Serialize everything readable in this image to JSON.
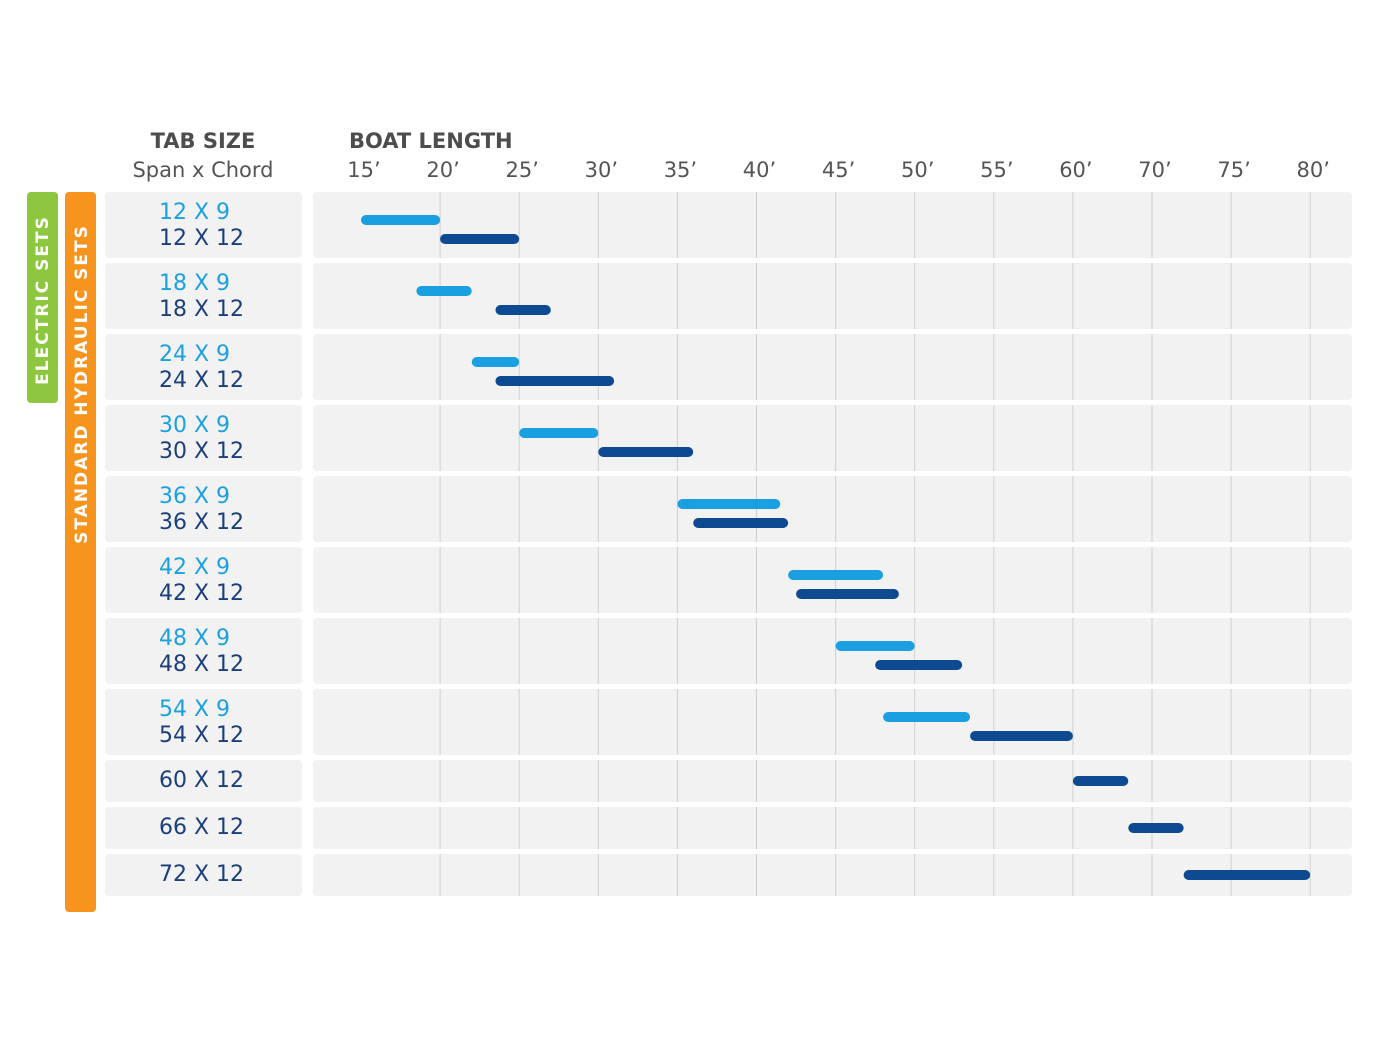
{
  "chart_data": {
    "type": "range_bar",
    "label_header": "TAB SIZE",
    "label_subheader": "Span x Chord",
    "x_label": "BOAT LENGTH",
    "groups": [
      "ELECTRIC SETS",
      "STANDARD HYDRAULIC SETS"
    ],
    "xticks": [
      {
        "value": 15,
        "label": "15’"
      },
      {
        "value": 20,
        "label": "20’"
      },
      {
        "value": 25,
        "label": "25’"
      },
      {
        "value": 30,
        "label": "30’"
      },
      {
        "value": 35,
        "label": "35’"
      },
      {
        "value": 40,
        "label": "40’"
      },
      {
        "value": 45,
        "label": "45’"
      },
      {
        "value": 50,
        "label": "50’"
      },
      {
        "value": 55,
        "label": "55’"
      },
      {
        "value": 60,
        "label": "60’"
      },
      {
        "value": 70,
        "label": "70’"
      },
      {
        "value": 75,
        "label": "75’"
      },
      {
        "value": 80,
        "label": "80’"
      }
    ],
    "rows": [
      {
        "bars": [
          {
            "label": "12 X 9",
            "color": "#1a9fe0",
            "range": [
              15,
              20
            ]
          },
          {
            "label": "12 X 12",
            "color": "#0d4a91",
            "range": [
              20,
              25
            ]
          }
        ]
      },
      {
        "bars": [
          {
            "label": "18 X 9",
            "color": "#1a9fe0",
            "range": [
              18.5,
              22
            ]
          },
          {
            "label": "18 X 12",
            "color": "#0d4a91",
            "range": [
              23.5,
              27
            ]
          }
        ]
      },
      {
        "bars": [
          {
            "label": "24 X 9",
            "color": "#1a9fe0",
            "range": [
              22,
              25
            ]
          },
          {
            "label": "24 X 12",
            "color": "#0d4a91",
            "range": [
              23.5,
              31
            ]
          }
        ]
      },
      {
        "bars": [
          {
            "label": "30 X 9",
            "color": "#1a9fe0",
            "range": [
              25,
              30
            ]
          },
          {
            "label": "30 X 12",
            "color": "#0d4a91",
            "range": [
              30,
              36
            ]
          }
        ]
      },
      {
        "bars": [
          {
            "label": "36 X 9",
            "color": "#1a9fe0",
            "range": [
              35,
              41.5
            ]
          },
          {
            "label": "36 X 12",
            "color": "#0d4a91",
            "range": [
              36,
              42
            ]
          }
        ]
      },
      {
        "bars": [
          {
            "label": "42 X 9",
            "color": "#1a9fe0",
            "range": [
              42,
              48
            ]
          },
          {
            "label": "42 X 12",
            "color": "#0d4a91",
            "range": [
              42.5,
              49
            ]
          }
        ]
      },
      {
        "bars": [
          {
            "label": "48 X 9",
            "color": "#1a9fe0",
            "range": [
              45,
              50
            ]
          },
          {
            "label": "48 X 12",
            "color": "#0d4a91",
            "range": [
              47.5,
              53
            ]
          }
        ]
      },
      {
        "bars": [
          {
            "label": "54 X 9",
            "color": "#1a9fe0",
            "range": [
              48,
              53.5
            ]
          },
          {
            "label": "54 X 12",
            "color": "#0d4a91",
            "range": [
              53.5,
              60
            ]
          }
        ]
      },
      {
        "bars": [
          {
            "label": "60 X 12",
            "color": "#0d4a91",
            "range": [
              60,
              67
            ]
          }
        ]
      },
      {
        "bars": [
          {
            "label": "66 X 12",
            "color": "#0d4a91",
            "range": [
              67,
              72
            ]
          }
        ]
      },
      {
        "bars": [
          {
            "label": "72 X 12",
            "color": "#0d4a91",
            "range": [
              72,
              80
            ]
          }
        ]
      }
    ]
  }
}
